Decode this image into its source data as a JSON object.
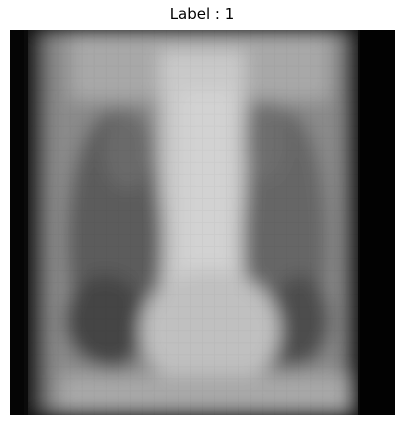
{
  "figure": {
    "title": "Label : 1"
  },
  "image": {
    "subject": "grayscale-chest-xray-thumbnail"
  }
}
